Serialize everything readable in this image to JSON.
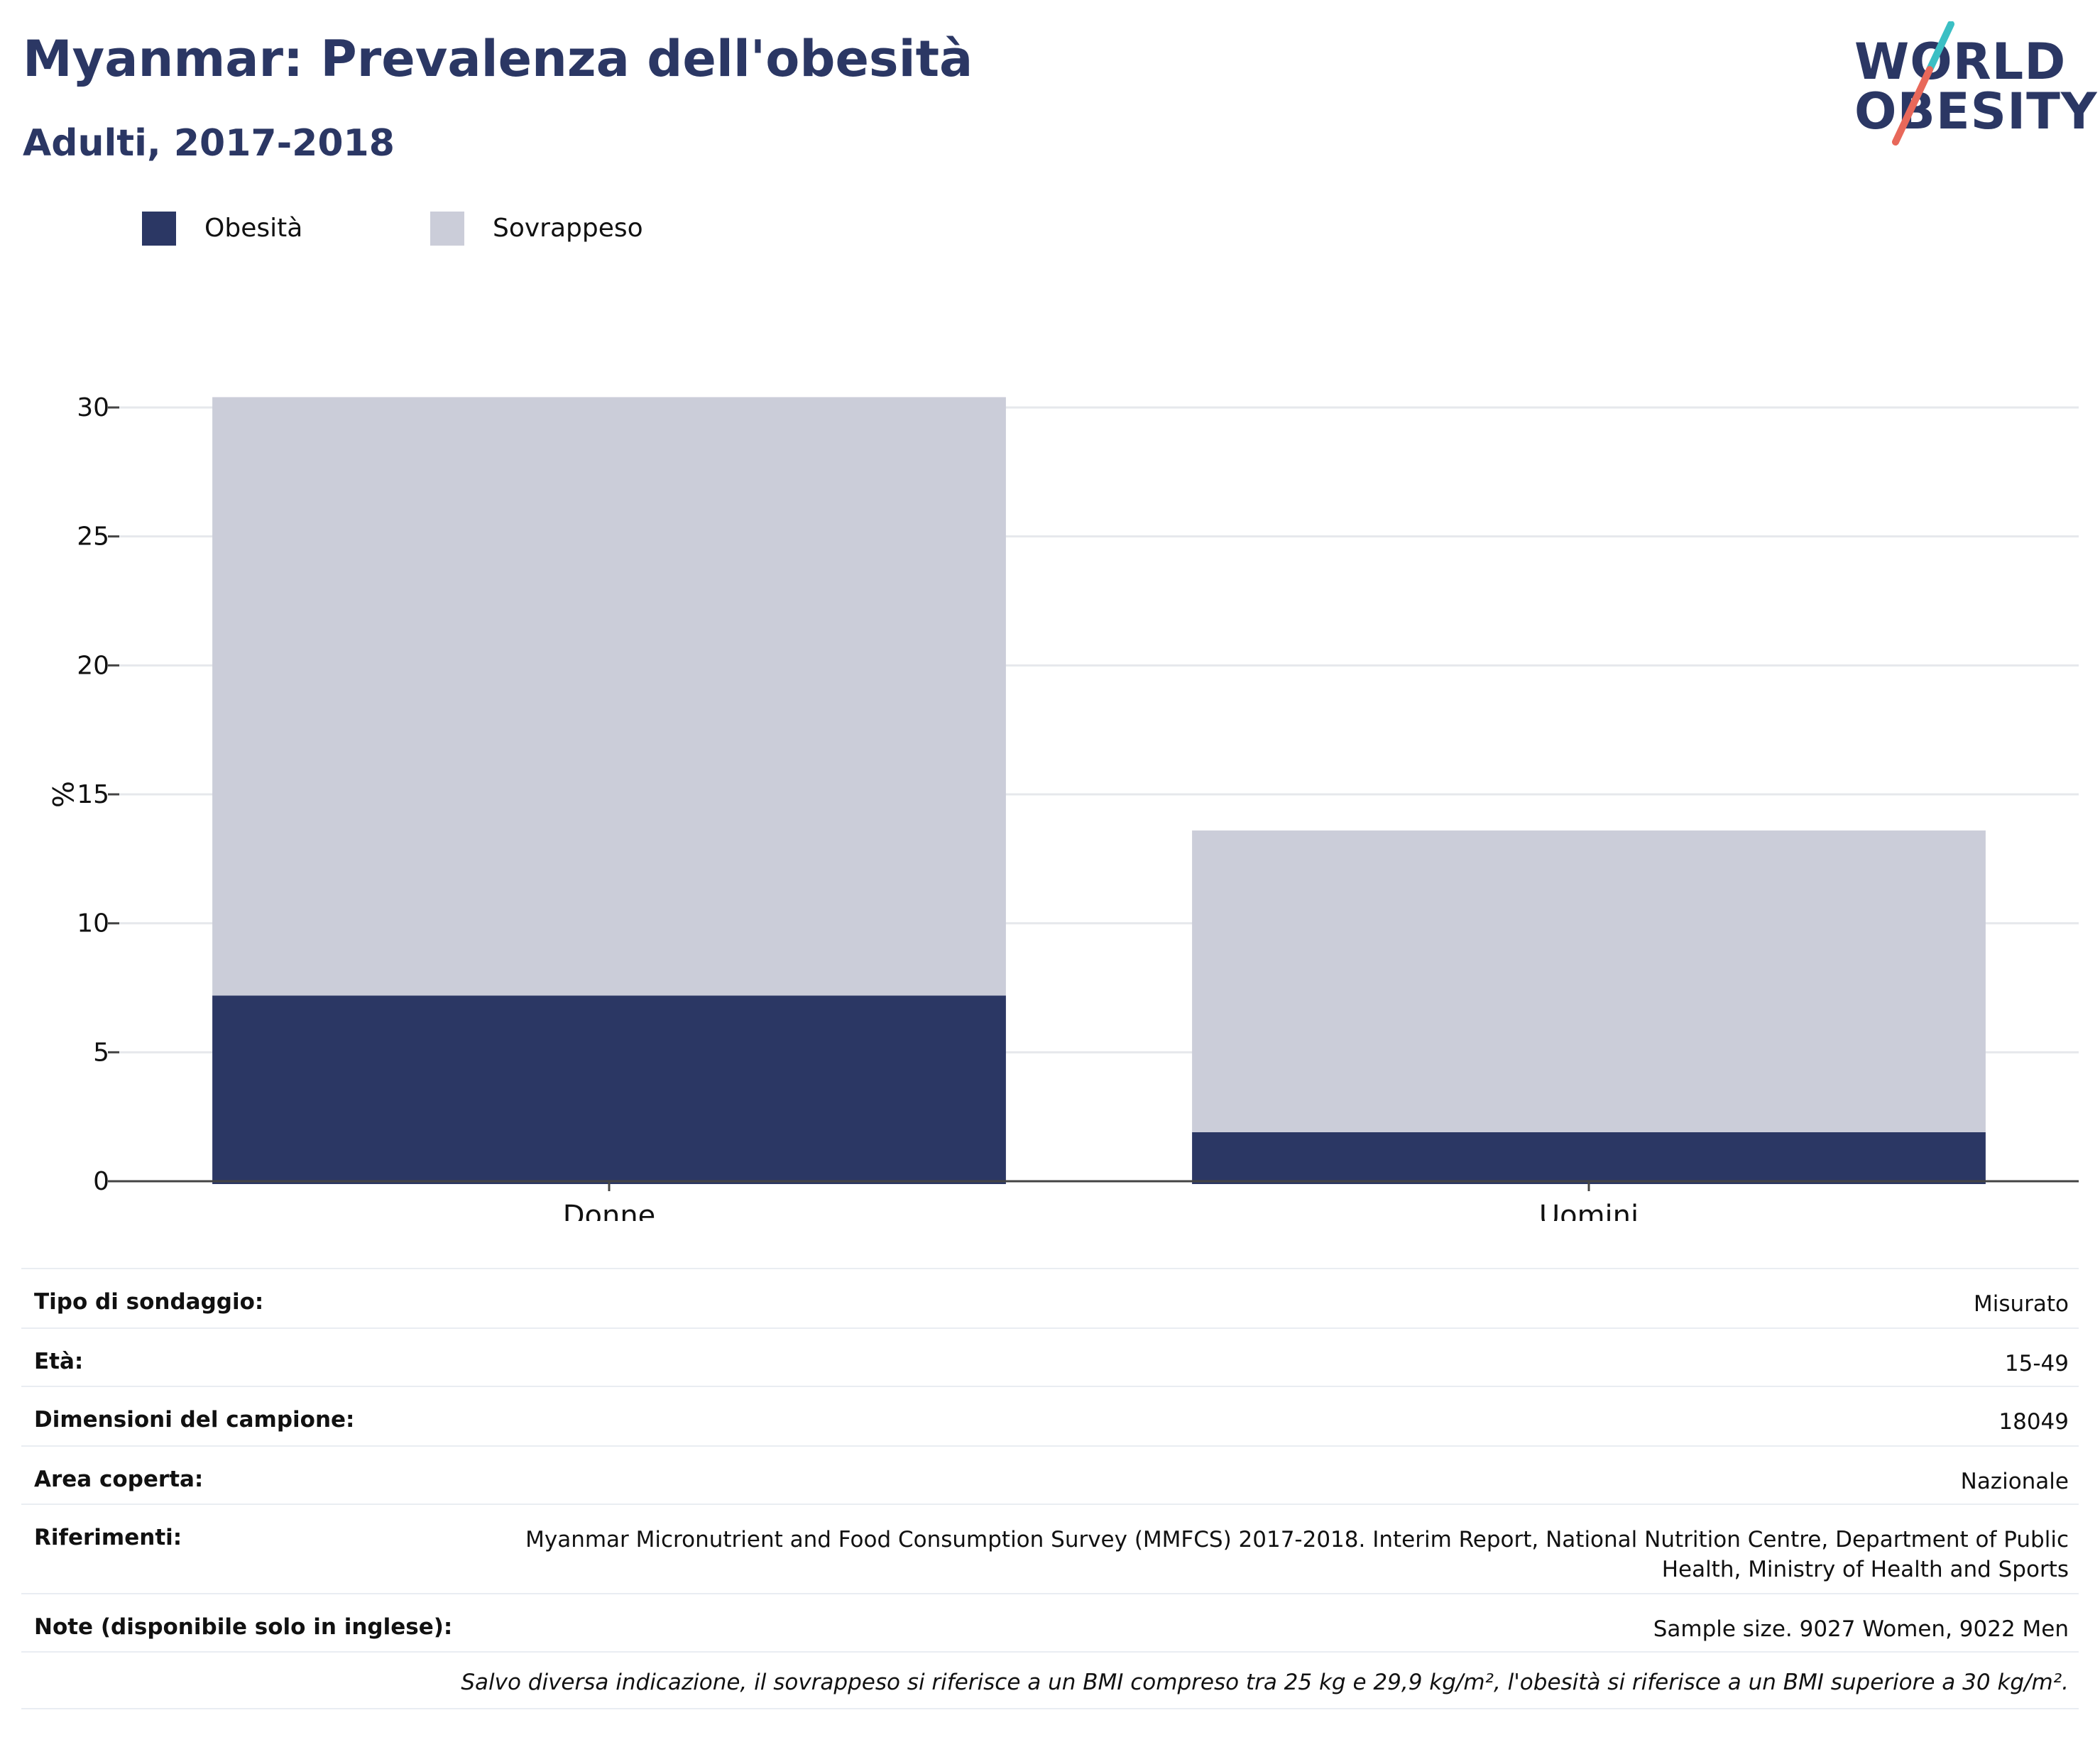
{
  "header": {
    "title": "Myanmar: Prevalenza dell'obesità",
    "subtitle": "Adulti, 2017-2018"
  },
  "logo": {
    "line1": "WORLD",
    "line2": "OBESITY",
    "accent_teal": "#3bbfc4",
    "accent_coral": "#e8685a"
  },
  "legend": {
    "items": [
      {
        "label": "Obesità",
        "color": "#2b3764"
      },
      {
        "label": "Sovrappeso",
        "color": "#cbcdd9"
      }
    ]
  },
  "chart_data": {
    "type": "bar",
    "stacked": true,
    "categories": [
      "Donne",
      "Uomini"
    ],
    "series": [
      {
        "name": "Obesità",
        "values": [
          7.2,
          1.9
        ],
        "color": "#2b3764"
      },
      {
        "name": "Sovrappeso",
        "values": [
          23.2,
          11.7
        ],
        "color": "#cbcdd9"
      }
    ],
    "ylabel": "%",
    "ylim": [
      0,
      30
    ],
    "yticks": [
      0,
      5,
      10,
      15,
      20,
      25,
      30
    ],
    "grid": true,
    "legend_position": "top-left"
  },
  "info": {
    "rows": [
      {
        "label": "Tipo di sondaggio:",
        "value": "Misurato"
      },
      {
        "label": "Età:",
        "value": "15-49"
      },
      {
        "label": "Dimensioni del campione:",
        "value": "18049"
      },
      {
        "label": "Area coperta:",
        "value": "Nazionale"
      },
      {
        "label": "Riferimenti:",
        "value": "Myanmar Micronutrient and Food Consumption Survey (MMFCS) 2017-2018. Interim Report, National Nutrition Centre, Department of Public Health, Ministry of Health and Sports"
      },
      {
        "label": "Note (disponibile solo in inglese):",
        "value": "Sample size. 9027 Women, 9022 Men"
      }
    ],
    "footnote": "Salvo diversa indicazione, il sovrappeso si riferisce a un BMI compreso tra 25 kg e 29,9 kg/m², l'obesità si riferisce a un BMI superiore a 30 kg/m²."
  }
}
